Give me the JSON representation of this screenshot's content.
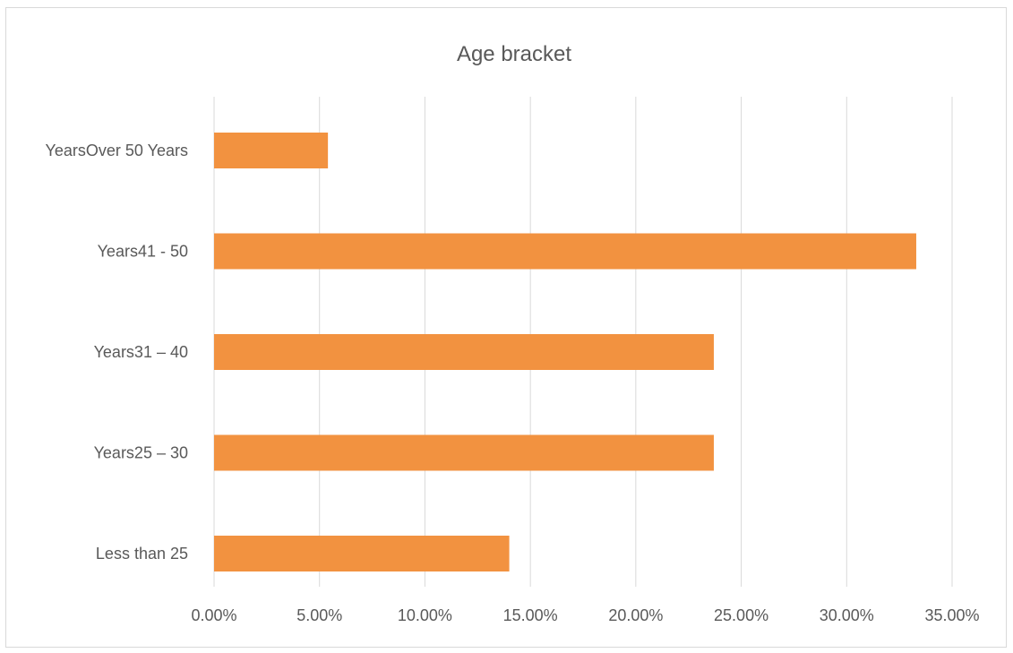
{
  "chart_data": {
    "type": "bar",
    "orientation": "horizontal",
    "title": "Age bracket",
    "categories": [
      "YearsOver 50 Years",
      "Years41 - 50",
      "Years31 – 40",
      "Years25 – 30",
      "Less than 25"
    ],
    "values": [
      0.054,
      0.333,
      0.237,
      0.237,
      0.14
    ],
    "xlim": [
      0,
      0.35
    ],
    "x_ticks": [
      0,
      0.05,
      0.1,
      0.15,
      0.2,
      0.25,
      0.3,
      0.35
    ],
    "x_tick_labels": [
      "0.00%",
      "5.00%",
      "10.00%",
      "15.00%",
      "20.00%",
      "25.00%",
      "30.00%",
      "35.00%"
    ],
    "xlabel": "",
    "ylabel": "",
    "grid": true,
    "legend": "none",
    "bar_color": "#f29240",
    "grid_color": "#d9d9d9",
    "text_color": "#595959"
  }
}
